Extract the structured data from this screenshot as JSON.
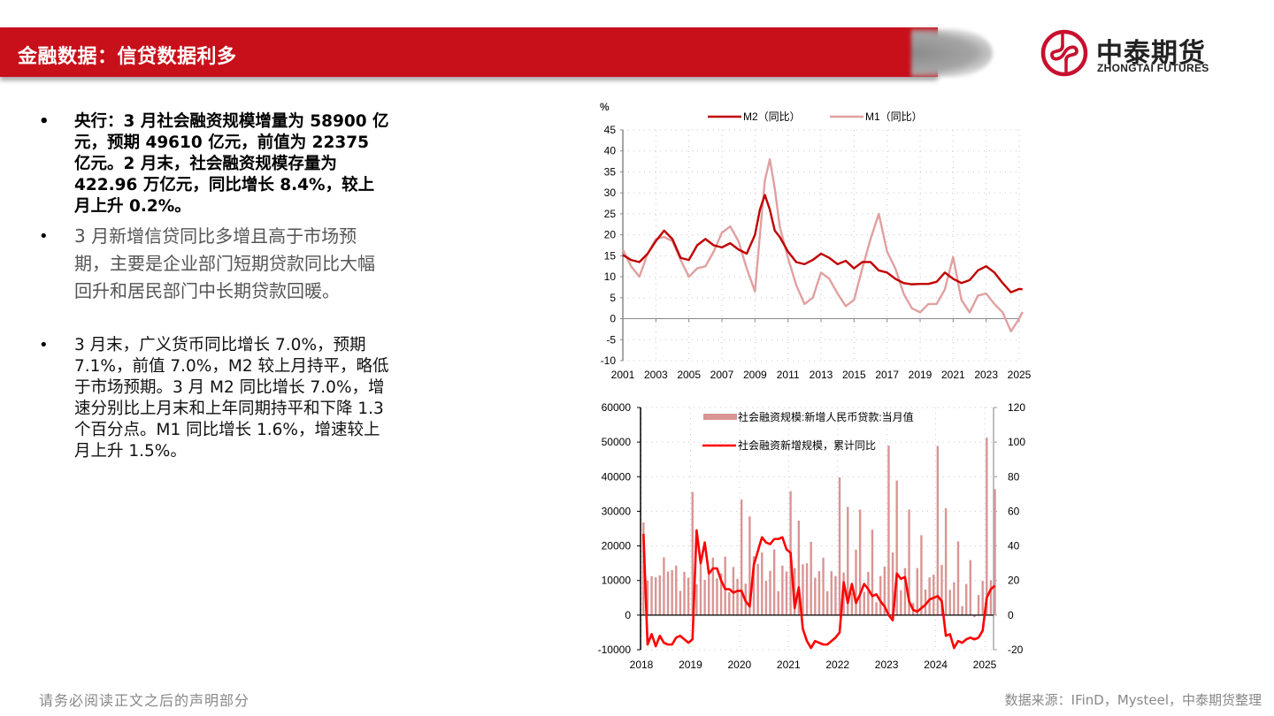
{
  "header": {
    "title": "金融数据：信贷数据利多",
    "brand_color": "#c8101a"
  },
  "logo": {
    "name_cn": "中泰期货",
    "name_en": "ZHONGTAI FUTURES"
  },
  "bullets": [
    {
      "text": "央行：3 月社会融资规模增量为 58900 亿元，预期 49610 亿元，前值为 22375 亿元。2 月末，社会融资规模存量为 422.96 万亿元，同比增长 8.4%，较上月上升 0.2%。",
      "bold": true
    },
    {
      "text": "3 月新增信贷同比多增且高于市场预期，主要是企业部门短期贷款同比大幅回升和居民部门中长期贷款回暖。",
      "bold": false
    },
    {
      "text": "3 月末，广义货币同比增长 7.0%，预期 7.1%，前值 7.0%，M2 较上月持平，略低于市场预期。3 月 M2 同比增长 7.0%，增速分别比上月末和上年同期持平和下降 1.3 个百分点。M1 同比增长 1.6%，增速较上月上升 1.5%。",
      "bold": false
    }
  ],
  "footer": {
    "disclaimer": "请务必阅读正文之后的声明部分",
    "source": "数据来源：IFinD，Mysteel，中泰期货整理"
  },
  "chart_data": [
    {
      "type": "line",
      "title": "",
      "ylabel": "%",
      "xlabel": "",
      "ylim": [
        -10,
        45
      ],
      "yticks": [
        -10,
        -5,
        0,
        5,
        10,
        15,
        20,
        25,
        30,
        35,
        40,
        45
      ],
      "xticks": [
        "2001",
        "2003",
        "2005",
        "2007",
        "2009",
        "2011",
        "2013",
        "2015",
        "2017",
        "2019",
        "2021",
        "2023",
        "2025"
      ],
      "grid": true,
      "legend_position": "top",
      "x": [
        2001.0,
        2001.5,
        2002.0,
        2002.5,
        2003.0,
        2003.5,
        2004.0,
        2004.5,
        2005.0,
        2005.5,
        2006.0,
        2006.5,
        2007.0,
        2007.5,
        2008.0,
        2008.5,
        2009.0,
        2009.3,
        2009.6,
        2009.9,
        2010.2,
        2010.5,
        2011.0,
        2011.5,
        2012.0,
        2012.5,
        2013.0,
        2013.5,
        2014.0,
        2014.5,
        2015.0,
        2015.5,
        2016.0,
        2016.5,
        2017.0,
        2017.5,
        2018.0,
        2018.5,
        2019.0,
        2019.5,
        2020.0,
        2020.5,
        2021.0,
        2021.5,
        2022.0,
        2022.5,
        2023.0,
        2023.5,
        2024.0,
        2024.5,
        2025.0,
        2025.2
      ],
      "series": [
        {
          "name": "M2（同比）",
          "color": "#c00000",
          "values": [
            15.2,
            14.0,
            13.5,
            15.5,
            18.5,
            21.0,
            19.0,
            14.5,
            14.0,
            17.5,
            19.0,
            17.5,
            17.0,
            18.0,
            16.5,
            15.5,
            20.0,
            26.0,
            29.5,
            26.0,
            21.0,
            19.5,
            16.0,
            13.5,
            13.0,
            14.0,
            15.5,
            14.5,
            13.0,
            13.8,
            12.0,
            13.5,
            13.5,
            11.5,
            11.0,
            9.5,
            8.5,
            8.2,
            8.3,
            8.3,
            8.8,
            11.0,
            9.5,
            8.5,
            9.2,
            11.5,
            12.5,
            11.0,
            8.5,
            6.3,
            7.1,
            7.0
          ]
        },
        {
          "name": "M1（同比）",
          "color": "#e0a0a0",
          "values": [
            16.5,
            12.5,
            10.0,
            15.5,
            19.0,
            19.5,
            18.5,
            14.0,
            10.0,
            12.0,
            12.5,
            16.0,
            20.5,
            22.0,
            18.5,
            12.0,
            6.5,
            20.0,
            33.0,
            38.0,
            31.0,
            22.0,
            14.5,
            8.0,
            3.5,
            5.0,
            11.0,
            9.5,
            6.0,
            3.0,
            4.5,
            12.0,
            19.0,
            25.0,
            16.0,
            12.0,
            6.0,
            2.5,
            1.5,
            3.5,
            3.5,
            7.0,
            14.7,
            4.5,
            1.5,
            5.5,
            6.0,
            3.5,
            1.5,
            -3.0,
            0.0,
            1.6
          ]
        }
      ]
    },
    {
      "type": "bar",
      "title": "",
      "xlabel": "",
      "ylabel": "",
      "ylim": [
        -10000,
        60000
      ],
      "y2lim": [
        -20,
        120
      ],
      "yticks": [
        -10000,
        0,
        10000,
        20000,
        30000,
        40000,
        50000,
        60000
      ],
      "y2ticks": [
        -20,
        0,
        20,
        40,
        60,
        80,
        100,
        120
      ],
      "xticks": [
        "2018",
        "2019",
        "2020",
        "2021",
        "2022",
        "2023",
        "2024",
        "2025"
      ],
      "grid": true,
      "legend_position": "top-center",
      "x_start": "2018-01",
      "series": [
        {
          "name": "社会融资规模:新增人民币贷款:当月值",
          "axis": "left",
          "color": "#d99594",
          "values": [
            26800,
            10000,
            11200,
            10900,
            11500,
            16700,
            12600,
            13000,
            14300,
            7000,
            12500,
            10800,
            35600,
            8900,
            16900,
            10200,
            11800,
            16600,
            10600,
            12100,
            16900,
            6600,
            13900,
            10500,
            33400,
            9100,
            28500,
            17000,
            14800,
            18100,
            9900,
            12800,
            19000,
            6900,
            14300,
            12600,
            35800,
            13600,
            27300,
            14700,
            15000,
            21200,
            10800,
            12700,
            16600,
            6900,
            12700,
            11300,
            39800,
            12300,
            31300,
            6500,
            18900,
            30500,
            6700,
            12500,
            24700,
            3700,
            11300,
            14000,
            49000,
            18100,
            38900,
            7200,
            13600,
            30500,
            3500,
            13600,
            23100,
            7400,
            10900,
            11700,
            48900,
            14500,
            30900,
            7300,
            9500,
            21300,
            2600,
            9000,
            15900,
            -600,
            5800,
            9900,
            51300,
            10100,
            36400
          ]
        },
        {
          "name": "社会融资新增规模，累计同比",
          "axis": "right",
          "color": "#ff0000",
          "values": [
            47,
            -17,
            -11,
            -18,
            -12,
            -16,
            -17,
            -17,
            -13,
            -12,
            -14,
            -16,
            -14,
            49,
            30,
            42,
            24,
            27,
            27,
            20,
            15,
            15,
            13,
            14,
            14,
            8,
            5,
            29,
            37,
            45,
            42,
            41,
            44,
            44,
            45,
            38,
            36,
            4,
            16,
            -8,
            -15,
            -19,
            -15,
            -16,
            -17,
            -17,
            -15,
            -13,
            -10,
            19,
            7,
            18,
            7,
            12,
            18,
            15,
            11,
            12,
            8,
            5,
            0,
            -3,
            24,
            21,
            22,
            8,
            3,
            2,
            4,
            6,
            9,
            10,
            11,
            8,
            -12,
            -11,
            -19,
            -15,
            -16,
            -14,
            -13,
            -14,
            -13,
            -9,
            10,
            15,
            17
          ]
        }
      ]
    }
  ]
}
